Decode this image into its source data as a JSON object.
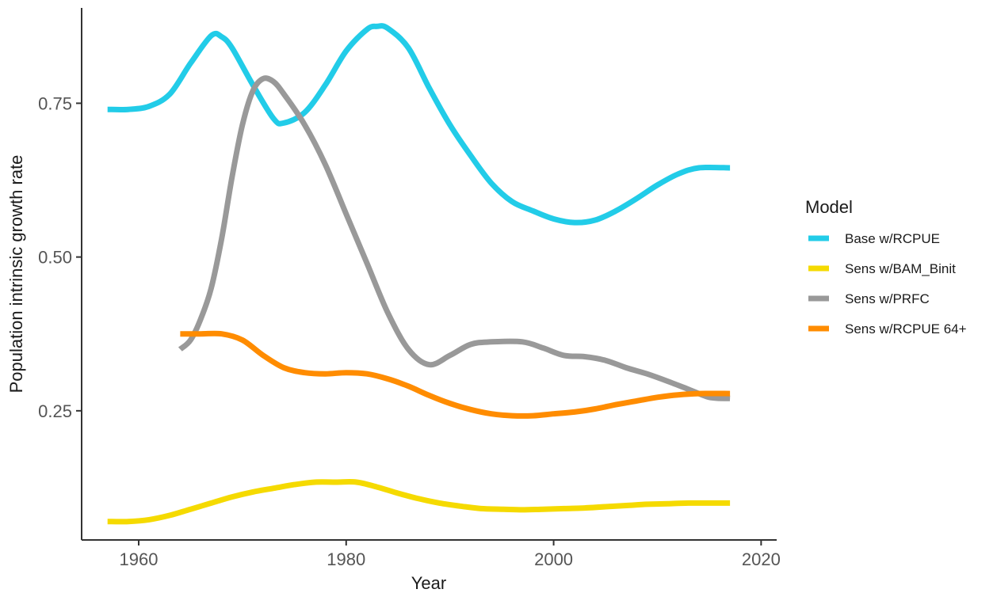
{
  "chart_data": {
    "type": "line",
    "title": "",
    "xlabel": "Year",
    "ylabel": "Population intrinsic growth rate",
    "xlim": [
      1954.5,
      2021.5
    ],
    "ylim": [
      0.04,
      0.905
    ],
    "x_ticks": [
      1960,
      1980,
      2000,
      2020
    ],
    "x_tick_labels": [
      "1960",
      "1980",
      "2000",
      "2020"
    ],
    "y_ticks": [
      0.25,
      0.5,
      0.75
    ],
    "y_tick_labels": [
      "0.25",
      "0.50",
      "0.75"
    ],
    "grid": false,
    "legend": {
      "title": "Model",
      "position": "right"
    },
    "series": [
      {
        "name": "Base w/RCPUE",
        "color": "#22CCE8",
        "points": [
          [
            1957,
            0.74
          ],
          [
            1959,
            0.74
          ],
          [
            1961,
            0.745
          ],
          [
            1963,
            0.765
          ],
          [
            1965,
            0.815
          ],
          [
            1967,
            0.86
          ],
          [
            1968,
            0.858
          ],
          [
            1969,
            0.84
          ],
          [
            1971,
            0.78
          ],
          [
            1973,
            0.725
          ],
          [
            1974,
            0.718
          ],
          [
            1976,
            0.735
          ],
          [
            1978,
            0.78
          ],
          [
            1980,
            0.835
          ],
          [
            1982,
            0.87
          ],
          [
            1983,
            0.875
          ],
          [
            1984,
            0.872
          ],
          [
            1986,
            0.84
          ],
          [
            1988,
            0.775
          ],
          [
            1990,
            0.715
          ],
          [
            1992,
            0.665
          ],
          [
            1994,
            0.62
          ],
          [
            1996,
            0.59
          ],
          [
            1998,
            0.575
          ],
          [
            2000,
            0.562
          ],
          [
            2002,
            0.556
          ],
          [
            2004,
            0.56
          ],
          [
            2006,
            0.575
          ],
          [
            2008,
            0.595
          ],
          [
            2010,
            0.617
          ],
          [
            2012,
            0.635
          ],
          [
            2014,
            0.645
          ],
          [
            2017,
            0.645
          ]
        ]
      },
      {
        "name": "Sens w/BAM_Binit",
        "color": "#F5DA00",
        "points": [
          [
            1957,
            0.07
          ],
          [
            1959,
            0.07
          ],
          [
            1961,
            0.073
          ],
          [
            1963,
            0.08
          ],
          [
            1965,
            0.09
          ],
          [
            1967,
            0.1
          ],
          [
            1969,
            0.11
          ],
          [
            1971,
            0.118
          ],
          [
            1973,
            0.124
          ],
          [
            1975,
            0.13
          ],
          [
            1977,
            0.134
          ],
          [
            1979,
            0.134
          ],
          [
            1981,
            0.134
          ],
          [
            1983,
            0.126
          ],
          [
            1985,
            0.116
          ],
          [
            1987,
            0.107
          ],
          [
            1989,
            0.1
          ],
          [
            1991,
            0.095
          ],
          [
            1993,
            0.091
          ],
          [
            1995,
            0.09
          ],
          [
            1997,
            0.089
          ],
          [
            1999,
            0.09
          ],
          [
            2001,
            0.091
          ],
          [
            2003,
            0.092
          ],
          [
            2005,
            0.094
          ],
          [
            2007,
            0.096
          ],
          [
            2009,
            0.098
          ],
          [
            2011,
            0.099
          ],
          [
            2013,
            0.1
          ],
          [
            2015,
            0.1
          ],
          [
            2017,
            0.1
          ]
        ]
      },
      {
        "name": "Sens w/PRFC",
        "color": "#999999",
        "points": [
          [
            1964,
            0.35
          ],
          [
            1965,
            0.365
          ],
          [
            1966,
            0.4
          ],
          [
            1967,
            0.45
          ],
          [
            1968,
            0.53
          ],
          [
            1969,
            0.63
          ],
          [
            1970,
            0.715
          ],
          [
            1971,
            0.77
          ],
          [
            1972,
            0.79
          ],
          [
            1973,
            0.785
          ],
          [
            1974,
            0.765
          ],
          [
            1976,
            0.715
          ],
          [
            1978,
            0.65
          ],
          [
            1980,
            0.57
          ],
          [
            1982,
            0.49
          ],
          [
            1984,
            0.41
          ],
          [
            1986,
            0.35
          ],
          [
            1988,
            0.325
          ],
          [
            1990,
            0.34
          ],
          [
            1992,
            0.358
          ],
          [
            1994,
            0.362
          ],
          [
            1997,
            0.362
          ],
          [
            1999,
            0.352
          ],
          [
            2001,
            0.34
          ],
          [
            2003,
            0.338
          ],
          [
            2005,
            0.332
          ],
          [
            2007,
            0.32
          ],
          [
            2009,
            0.31
          ],
          [
            2011,
            0.298
          ],
          [
            2013,
            0.285
          ],
          [
            2015,
            0.272
          ],
          [
            2017,
            0.27
          ]
        ]
      },
      {
        "name": "Sens w/RCPUE 64+",
        "color": "#FF8C00",
        "points": [
          [
            1964,
            0.375
          ],
          [
            1966,
            0.375
          ],
          [
            1968,
            0.375
          ],
          [
            1970,
            0.365
          ],
          [
            1972,
            0.34
          ],
          [
            1974,
            0.32
          ],
          [
            1976,
            0.312
          ],
          [
            1978,
            0.31
          ],
          [
            1980,
            0.312
          ],
          [
            1982,
            0.31
          ],
          [
            1984,
            0.302
          ],
          [
            1986,
            0.29
          ],
          [
            1988,
            0.275
          ],
          [
            1990,
            0.262
          ],
          [
            1992,
            0.252
          ],
          [
            1994,
            0.245
          ],
          [
            1996,
            0.242
          ],
          [
            1998,
            0.242
          ],
          [
            2000,
            0.245
          ],
          [
            2002,
            0.248
          ],
          [
            2004,
            0.253
          ],
          [
            2006,
            0.26
          ],
          [
            2008,
            0.266
          ],
          [
            2010,
            0.272
          ],
          [
            2012,
            0.276
          ],
          [
            2014,
            0.278
          ],
          [
            2017,
            0.278
          ]
        ]
      }
    ]
  }
}
